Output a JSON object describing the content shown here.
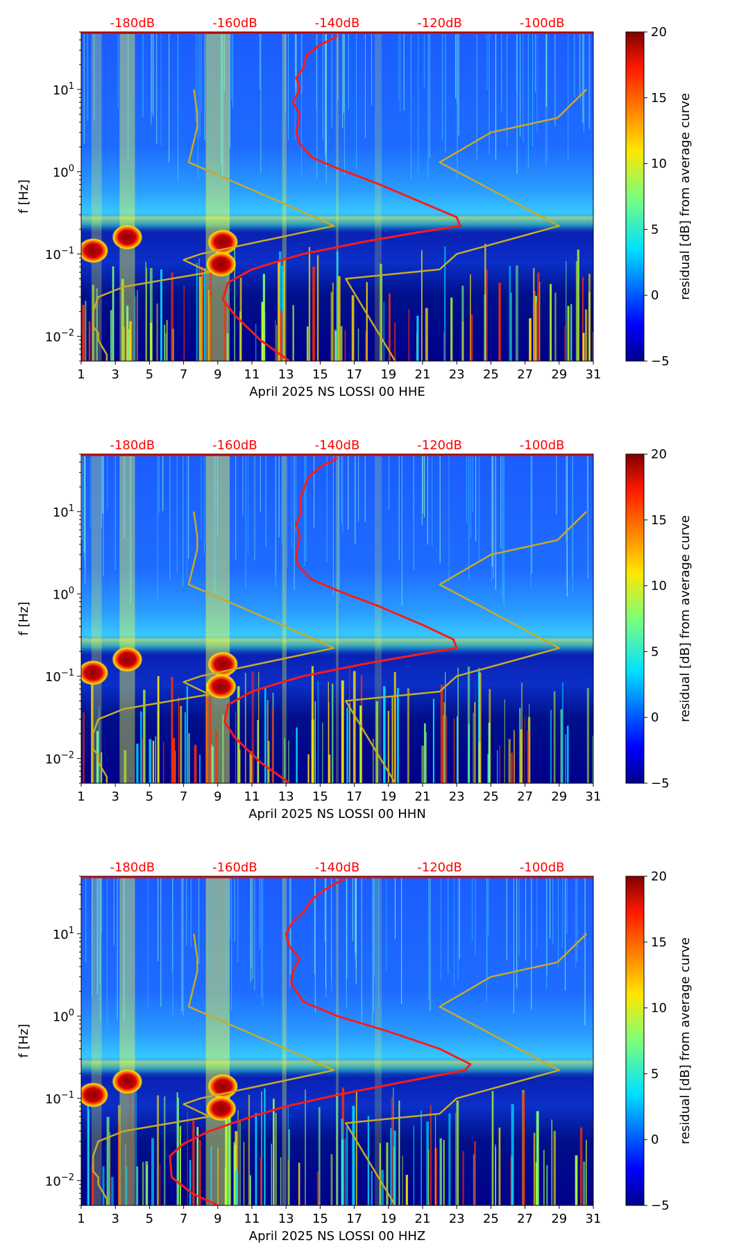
{
  "figure": {
    "colorbar": {
      "label": "residual [dB] from average curve",
      "min": -5,
      "max": 20,
      "ticks": [
        -5,
        0,
        5,
        10,
        15,
        20
      ],
      "tick_labels": [
        "−5",
        "0",
        "5",
        "10",
        "15",
        "20"
      ]
    },
    "top_axis_labels": [
      "-180dB",
      "-160dB",
      "-140dB",
      "-120dB",
      "-100dB"
    ],
    "top_axis_color": "#ff0000",
    "x_tick_labels": [
      "1",
      "3",
      "5",
      "7",
      "9",
      "11",
      "13",
      "15",
      "17",
      "19",
      "21",
      "23",
      "25",
      "27",
      "29",
      "31"
    ],
    "y_label": "f [Hz]",
    "y_ticks": [
      {
        "base": "10",
        "exp": "1",
        "value": 10
      },
      {
        "base": "10",
        "exp": "0",
        "value": 1
      },
      {
        "base": "10",
        "exp": "−1",
        "value": 0.1
      },
      {
        "base": "10",
        "exp": "−2",
        "value": 0.01
      }
    ],
    "noise_model_color": "#c8aa28",
    "median_curve_color": "#ff1a1a",
    "panel_colors": {
      "low": "#00008b",
      "mid": "#1446ff",
      "high": "#8b0000"
    }
  },
  "chart_data": [
    {
      "type": "heatmap",
      "title": "April 2025 NS LOSSI 00 HHE",
      "xlabel": "April 2025 NS LOSSI 00 HHE",
      "ylabel": "f [Hz]",
      "x_range_days": [
        1,
        31
      ],
      "y_range_hz": [
        0.005,
        50
      ],
      "y_scale": "log",
      "color_range_db": [
        -5,
        20
      ],
      "top_axis": {
        "labels": [
          "-180dB",
          "-160dB",
          "-140dB",
          "-120dB",
          "-100dB"
        ],
        "range_db": [
          -190,
          -90
        ]
      },
      "high_residual_blobs": [
        {
          "day": 1.7,
          "freq_hz": 0.11,
          "residual_db": 20
        },
        {
          "day": 3.7,
          "freq_hz": 0.16,
          "residual_db": 20
        },
        {
          "day": 9.3,
          "freq_hz": 0.14,
          "residual_db": 20
        },
        {
          "day": 9.2,
          "freq_hz": 0.075,
          "residual_db": 20
        }
      ],
      "series": [
        {
          "name": "noise model (low)",
          "color": "#c8aa28",
          "points": [
            [
              2.5,
              0.005
            ],
            [
              2.5,
              0.006
            ],
            [
              2.0,
              0.009
            ],
            [
              2.0,
              0.011
            ],
            [
              1.7,
              0.013
            ],
            [
              1.7,
              0.02
            ],
            [
              2.0,
              0.03
            ],
            [
              3.5,
              0.04
            ],
            [
              8.5,
              0.06
            ],
            [
              7.0,
              0.085
            ],
            [
              8.0,
              0.1
            ],
            [
              15.8,
              0.22
            ],
            [
              13.0,
              0.4
            ],
            [
              7.3,
              1.3
            ],
            [
              7.8,
              3.5
            ],
            [
              7.8,
              5.0
            ],
            [
              7.6,
              10
            ]
          ]
        },
        {
          "name": "noise model (high)",
          "color": "#c8aa28",
          "points": [
            [
              19.4,
              0.005
            ],
            [
              16.5,
              0.05
            ],
            [
              22.0,
              0.065
            ],
            [
              23.0,
              0.1
            ],
            [
              29.0,
              0.22
            ],
            [
              22.0,
              1.3
            ],
            [
              25.0,
              3.0
            ],
            [
              28.9,
              4.5
            ],
            [
              30.6,
              10
            ]
          ]
        },
        {
          "name": "median PSD",
          "color": "#ff1a1a",
          "points": [
            [
              13.2,
              0.005
            ],
            [
              11.5,
              0.009
            ],
            [
              10.0,
              0.018
            ],
            [
              9.3,
              0.028
            ],
            [
              9.6,
              0.045
            ],
            [
              11.0,
              0.065
            ],
            [
              12.8,
              0.085
            ],
            [
              14.0,
              0.1
            ],
            [
              17.5,
              0.14
            ],
            [
              20.5,
              0.18
            ],
            [
              23.2,
              0.22
            ],
            [
              23.0,
              0.28
            ],
            [
              21.0,
              0.42
            ],
            [
              18.5,
              0.7
            ],
            [
              16.0,
              1.1
            ],
            [
              14.5,
              1.5
            ],
            [
              13.8,
              2.2
            ],
            [
              13.6,
              3.0
            ],
            [
              13.8,
              5.0
            ],
            [
              13.4,
              7.0
            ],
            [
              13.8,
              10
            ],
            [
              13.6,
              14
            ],
            [
              14.0,
              18
            ],
            [
              14.2,
              26
            ],
            [
              15.0,
              35
            ],
            [
              15.8,
              42
            ],
            [
              16.0,
              45
            ]
          ]
        }
      ]
    },
    {
      "type": "heatmap",
      "title": "April 2025 NS LOSSI 00 HHN",
      "xlabel": "April 2025 NS LOSSI 00 HHN",
      "ylabel": "f [Hz]",
      "x_range_days": [
        1,
        31
      ],
      "y_range_hz": [
        0.005,
        50
      ],
      "y_scale": "log",
      "color_range_db": [
        -5,
        20
      ],
      "top_axis": {
        "labels": [
          "-180dB",
          "-160dB",
          "-140dB",
          "-120dB",
          "-100dB"
        ],
        "range_db": [
          -190,
          -90
        ]
      },
      "high_residual_blobs": [
        {
          "day": 1.7,
          "freq_hz": 0.11,
          "residual_db": 20
        },
        {
          "day": 3.7,
          "freq_hz": 0.16,
          "residual_db": 20
        },
        {
          "day": 9.3,
          "freq_hz": 0.14,
          "residual_db": 20
        },
        {
          "day": 9.2,
          "freq_hz": 0.075,
          "residual_db": 20
        }
      ],
      "series": [
        {
          "name": "noise model (low)",
          "color": "#c8aa28",
          "points": [
            [
              2.5,
              0.005
            ],
            [
              2.5,
              0.006
            ],
            [
              2.0,
              0.009
            ],
            [
              2.0,
              0.011
            ],
            [
              1.7,
              0.013
            ],
            [
              1.7,
              0.02
            ],
            [
              2.0,
              0.03
            ],
            [
              3.5,
              0.04
            ],
            [
              8.5,
              0.06
            ],
            [
              7.0,
              0.085
            ],
            [
              8.0,
              0.1
            ],
            [
              15.8,
              0.22
            ],
            [
              13.0,
              0.4
            ],
            [
              7.3,
              1.3
            ],
            [
              7.8,
              3.5
            ],
            [
              7.8,
              5.0
            ],
            [
              7.6,
              10
            ]
          ]
        },
        {
          "name": "noise model (high)",
          "color": "#c8aa28",
          "points": [
            [
              19.4,
              0.005
            ],
            [
              16.5,
              0.05
            ],
            [
              22.0,
              0.065
            ],
            [
              23.0,
              0.1
            ],
            [
              29.0,
              0.22
            ],
            [
              22.0,
              1.3
            ],
            [
              25.0,
              3.0
            ],
            [
              28.9,
              4.5
            ],
            [
              30.6,
              10
            ]
          ]
        },
        {
          "name": "median PSD",
          "color": "#ff1a1a",
          "points": [
            [
              13.2,
              0.005
            ],
            [
              11.5,
              0.009
            ],
            [
              10.0,
              0.018
            ],
            [
              9.4,
              0.028
            ],
            [
              9.6,
              0.045
            ],
            [
              11.0,
              0.065
            ],
            [
              12.8,
              0.085
            ],
            [
              14.0,
              0.1
            ],
            [
              17.5,
              0.14
            ],
            [
              20.5,
              0.18
            ],
            [
              23.0,
              0.22
            ],
            [
              22.8,
              0.28
            ],
            [
              21.0,
              0.42
            ],
            [
              18.5,
              0.7
            ],
            [
              16.0,
              1.1
            ],
            [
              14.5,
              1.5
            ],
            [
              13.7,
              2.2
            ],
            [
              13.6,
              3.0
            ],
            [
              13.8,
              5.0
            ],
            [
              13.6,
              7.0
            ],
            [
              13.9,
              10
            ],
            [
              13.8,
              14
            ],
            [
              14.0,
              18
            ],
            [
              14.3,
              26
            ],
            [
              15.0,
              35
            ],
            [
              15.8,
              42
            ],
            [
              16.0,
              45
            ]
          ]
        }
      ]
    },
    {
      "type": "heatmap",
      "title": "April 2025 NS LOSSI 00 HHZ",
      "xlabel": "April 2025 NS LOSSI 00 HHZ",
      "ylabel": "f [Hz]",
      "x_range_days": [
        1,
        31
      ],
      "y_range_hz": [
        0.005,
        50
      ],
      "y_scale": "log",
      "color_range_db": [
        -5,
        20
      ],
      "top_axis": {
        "labels": [
          "-180dB",
          "-160dB",
          "-140dB",
          "-120dB",
          "-100dB"
        ],
        "range_db": [
          -190,
          -90
        ]
      },
      "high_residual_blobs": [
        {
          "day": 1.7,
          "freq_hz": 0.11,
          "residual_db": 20
        },
        {
          "day": 3.7,
          "freq_hz": 0.16,
          "residual_db": 20
        },
        {
          "day": 9.3,
          "freq_hz": 0.14,
          "residual_db": 20
        },
        {
          "day": 9.2,
          "freq_hz": 0.075,
          "residual_db": 20
        }
      ],
      "series": [
        {
          "name": "noise model (low)",
          "color": "#c8aa28",
          "points": [
            [
              2.5,
              0.005
            ],
            [
              2.5,
              0.006
            ],
            [
              2.0,
              0.009
            ],
            [
              2.0,
              0.011
            ],
            [
              1.7,
              0.013
            ],
            [
              1.7,
              0.02
            ],
            [
              2.0,
              0.03
            ],
            [
              3.5,
              0.04
            ],
            [
              8.5,
              0.06
            ],
            [
              7.0,
              0.085
            ],
            [
              8.0,
              0.1
            ],
            [
              15.8,
              0.22
            ],
            [
              13.0,
              0.4
            ],
            [
              7.3,
              1.3
            ],
            [
              7.8,
              3.5
            ],
            [
              7.8,
              5.0
            ],
            [
              7.6,
              10
            ]
          ]
        },
        {
          "name": "noise model (high)",
          "color": "#c8aa28",
          "points": [
            [
              19.4,
              0.005
            ],
            [
              16.5,
              0.05
            ],
            [
              22.0,
              0.065
            ],
            [
              23.0,
              0.1
            ],
            [
              29.0,
              0.22
            ],
            [
              22.0,
              1.3
            ],
            [
              25.0,
              3.0
            ],
            [
              28.9,
              4.5
            ],
            [
              30.6,
              10
            ]
          ]
        },
        {
          "name": "median PSD",
          "color": "#ff1a1a",
          "points": [
            [
              9.0,
              0.005
            ],
            [
              7.5,
              0.007
            ],
            [
              6.3,
              0.011
            ],
            [
              6.2,
              0.02
            ],
            [
              7.0,
              0.028
            ],
            [
              8.5,
              0.04
            ],
            [
              11.0,
              0.06
            ],
            [
              13.0,
              0.08
            ],
            [
              16.0,
              0.11
            ],
            [
              20.0,
              0.16
            ],
            [
              23.5,
              0.22
            ],
            [
              23.8,
              0.26
            ],
            [
              22.0,
              0.4
            ],
            [
              19.0,
              0.65
            ],
            [
              16.0,
              1.0
            ],
            [
              14.0,
              1.5
            ],
            [
              13.3,
              2.5
            ],
            [
              13.4,
              3.5
            ],
            [
              13.8,
              5.0
            ],
            [
              13.2,
              7.0
            ],
            [
              13.0,
              10
            ],
            [
              13.4,
              14
            ],
            [
              14.0,
              18
            ],
            [
              14.5,
              26
            ],
            [
              15.3,
              35
            ],
            [
              16.0,
              42
            ],
            [
              16.4,
              45
            ]
          ]
        }
      ]
    }
  ]
}
